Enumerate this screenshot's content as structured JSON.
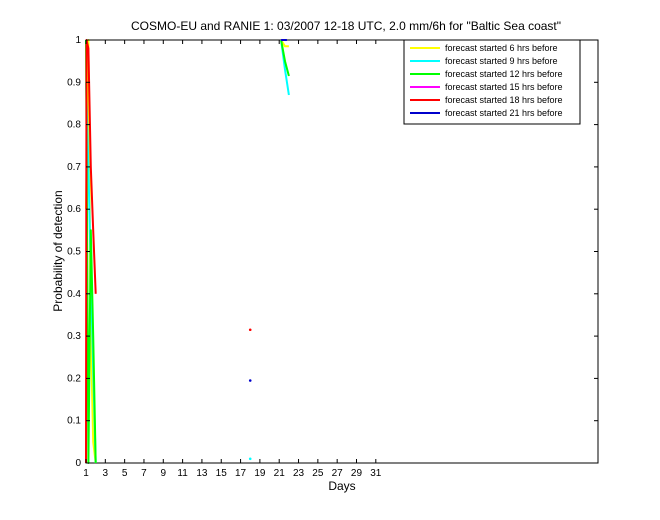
{
  "chart_data": {
    "type": "line",
    "title": "COSMO-EU and RANIE 1: 03/2007 12-18 UTC, 2.0 mm/6h for \"Baltic Sea coast\"",
    "xlabel": "Days",
    "ylabel": "Probability of detection",
    "xlim": [
      1,
      54
    ],
    "ylim": [
      0,
      1
    ],
    "xticks": [
      1,
      3,
      5,
      7,
      9,
      11,
      13,
      15,
      17,
      19,
      21,
      23,
      25,
      27,
      29,
      31
    ],
    "yticks": [
      0,
      0.1,
      0.2,
      0.3,
      0.4,
      0.5,
      0.6,
      0.7,
      0.8,
      0.9,
      1
    ],
    "ytick_labels": [
      "0",
      "0.1",
      "0.2",
      "0.3",
      "0.4",
      "0.5",
      "0.6",
      "0.7",
      "0.8",
      "0.9",
      "1"
    ],
    "grid": false,
    "legend_position": "top-right",
    "series": [
      {
        "name": "forecast started 6 hrs before",
        "color": "#ffff00",
        "segments": [
          [
            [
              1,
              0.6
            ],
            [
              1.25,
              1.0
            ],
            [
              1.5,
              0.3
            ],
            [
              1.75,
              0.05
            ],
            [
              2,
              0.0
            ]
          ],
          [
            [
              21.2,
              1.0
            ],
            [
              21.6,
              0.985
            ],
            [
              22,
              0.985
            ]
          ]
        ]
      },
      {
        "name": "forecast started 9 hrs before",
        "color": "#00ffff",
        "segments": [
          [
            [
              1,
              0.9
            ],
            [
              1.25,
              0.7
            ],
            [
              1.5,
              0.45
            ],
            [
              1.75,
              0.22
            ],
            [
              2,
              0.0
            ]
          ],
          [
            [
              21.2,
              1.0
            ],
            [
              21.6,
              0.93
            ],
            [
              22,
              0.87
            ]
          ],
          [
            [
              18,
              0.01
            ]
          ]
        ]
      },
      {
        "name": "forecast started 12 hrs before",
        "color": "#00ff00",
        "segments": [
          [
            [
              1,
              1.0
            ],
            [
              1.25,
              0.0
            ],
            [
              1.5,
              0.55
            ],
            [
              1.75,
              0.3
            ],
            [
              2,
              0.0
            ]
          ],
          [
            [
              21.2,
              1.0
            ],
            [
              21.6,
              0.95
            ],
            [
              22,
              0.915
            ]
          ]
        ]
      },
      {
        "name": "forecast started 15 hrs before",
        "color": "#ff00ff",
        "segments": [
          [
            [
              21.2,
              1.0
            ],
            [
              21.6,
              1.0
            ]
          ]
        ]
      },
      {
        "name": "forecast started 18 hrs before",
        "color": "#ff0000",
        "segments": [
          [
            [
              1,
              0.0
            ],
            [
              1.05,
              1.0
            ],
            [
              1.25,
              0.98
            ],
            [
              1.5,
              0.7
            ],
            [
              1.75,
              0.55
            ],
            [
              2,
              0.4
            ]
          ],
          [
            [
              18,
              0.315
            ]
          ]
        ]
      },
      {
        "name": "forecast started 21 hrs before",
        "color": "#0000cc",
        "segments": [
          [
            [
              21.2,
              1.0
            ],
            [
              21.8,
              1.0
            ]
          ],
          [
            [
              18,
              0.195
            ]
          ]
        ]
      }
    ]
  }
}
